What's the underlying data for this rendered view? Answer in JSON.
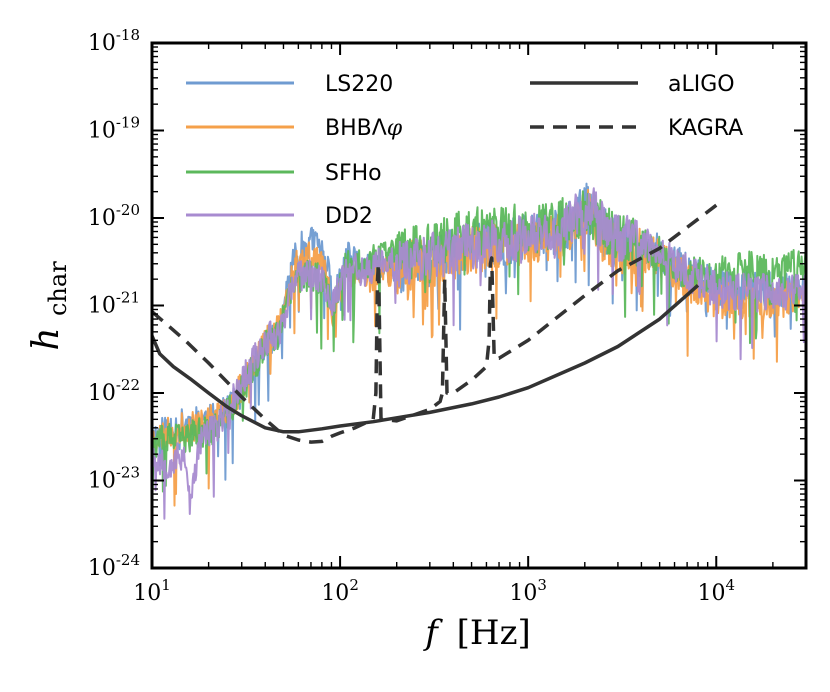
{
  "chart_data": {
    "type": "line",
    "x_scale": "log",
    "y_scale": "log",
    "xlim": [
      10,
      30000
    ],
    "ylim": [
      1e-24,
      1e-18
    ],
    "xlabel": "f",
    "xlabel_unit": "[Hz]",
    "ylabel": "h",
    "ylabel_sub": "char",
    "x_ticks": [
      {
        "value": 10,
        "base": "10",
        "exp": "1"
      },
      {
        "value": 100,
        "base": "10",
        "exp": "2"
      },
      {
        "value": 1000,
        "base": "10",
        "exp": "3"
      },
      {
        "value": 10000,
        "base": "10",
        "exp": "4"
      }
    ],
    "y_ticks": [
      {
        "value": 1e-24,
        "base": "10",
        "exp": "-24"
      },
      {
        "value": 1e-23,
        "base": "10",
        "exp": "-23"
      },
      {
        "value": 1e-22,
        "base": "10",
        "exp": "-22"
      },
      {
        "value": 1e-21,
        "base": "10",
        "exp": "-21"
      },
      {
        "value": 1e-20,
        "base": "10",
        "exp": "-20"
      },
      {
        "value": 1e-19,
        "base": "10",
        "exp": "-19"
      },
      {
        "value": 1e-18,
        "base": "10",
        "exp": "-18"
      }
    ],
    "series": [
      {
        "name": "LS220",
        "color": "#6f9bd1",
        "style": "noisy",
        "seed": 11,
        "x": [
          10,
          12,
          15,
          18,
          22,
          28,
          35,
          42,
          48,
          52,
          58,
          65,
          75,
          85,
          92,
          100,
          110,
          125,
          140,
          160,
          180,
          200,
          250,
          300,
          400,
          500,
          700,
          1000,
          1400,
          1800,
          2100,
          2500,
          3000,
          4000,
          5000,
          6000,
          8000,
          10000,
          15000,
          20000,
          30000
        ],
        "y": [
          3e-23,
          4e-23,
          4.5e-23,
          5e-23,
          5e-23,
          8e-23,
          2e-22,
          4e-22,
          5e-22,
          1.5e-21,
          4e-21,
          5e-21,
          5.5e-21,
          3e-21,
          1e-21,
          2e-21,
          3.5e-21,
          3e-21,
          2.5e-21,
          3e-21,
          2.5e-21,
          2.5e-21,
          3e-21,
          3e-21,
          4e-21,
          5e-21,
          5e-21,
          6e-21,
          7e-21,
          1e-20,
          1.4e-20,
          7e-21,
          5e-21,
          5e-21,
          4e-21,
          3e-21,
          2e-21,
          1.6e-21,
          1.5e-21,
          1.5e-21,
          1.6e-21
        ]
      },
      {
        "name": "BHBΛφ",
        "color": "#f5a04a",
        "style": "noisy",
        "seed": 23,
        "x": [
          10,
          12,
          15,
          18,
          22,
          28,
          35,
          42,
          48,
          52,
          58,
          65,
          75,
          85,
          92,
          100,
          110,
          125,
          140,
          160,
          180,
          200,
          250,
          300,
          400,
          500,
          700,
          1000,
          1400,
          1800,
          2100,
          2500,
          3000,
          4000,
          5000,
          6000,
          8000,
          10000,
          15000,
          20000,
          30000
        ],
        "y": [
          3e-23,
          3.5e-23,
          4e-23,
          4.5e-23,
          5e-23,
          9e-23,
          2.5e-22,
          4.5e-22,
          6e-22,
          1.2e-21,
          3e-21,
          3.5e-21,
          3.5e-21,
          2e-21,
          8e-22,
          1.5e-21,
          2.5e-21,
          2e-21,
          2e-21,
          2.5e-21,
          2.5e-21,
          2.5e-21,
          3e-21,
          3e-21,
          3.5e-21,
          4.5e-21,
          4.5e-21,
          5.5e-21,
          6e-21,
          9e-21,
          1.2e-20,
          6e-21,
          4.5e-21,
          4e-21,
          3.5e-21,
          2.5e-21,
          1.5e-21,
          1.2e-21,
          1.1e-21,
          1.1e-21,
          1.2e-21
        ]
      },
      {
        "name": "SFHo",
        "color": "#5cb85c",
        "style": "noisy",
        "seed": 37,
        "x": [
          10,
          12,
          15,
          18,
          22,
          28,
          35,
          42,
          48,
          52,
          58,
          65,
          75,
          85,
          92,
          100,
          110,
          125,
          140,
          160,
          180,
          200,
          250,
          300,
          400,
          500,
          700,
          1000,
          1400,
          1800,
          2100,
          2500,
          3000,
          4000,
          5000,
          6000,
          8000,
          10000,
          15000,
          20000,
          30000
        ],
        "y": [
          2.5e-23,
          3e-23,
          3e-23,
          3.5e-23,
          4e-23,
          8e-23,
          2e-22,
          4e-22,
          5e-22,
          1e-21,
          2e-21,
          2.2e-21,
          2.2e-21,
          1.5e-21,
          1e-21,
          2e-21,
          3e-21,
          3e-21,
          3e-21,
          3.5e-21,
          4e-21,
          4e-21,
          5e-21,
          5e-21,
          6e-21,
          7e-21,
          7e-21,
          8e-21,
          8e-21,
          1.1e-20,
          1.2e-20,
          8e-21,
          6e-21,
          5e-21,
          4e-21,
          3e-21,
          2.2e-21,
          2.2e-21,
          2.5e-21,
          2.5e-21,
          2.8e-21
        ]
      },
      {
        "name": "DD2",
        "color": "#a88bd0",
        "style": "noisy",
        "seed": 53,
        "x": [
          10,
          12,
          15,
          16,
          18,
          22,
          28,
          35,
          42,
          48,
          52,
          58,
          65,
          75,
          85,
          92,
          100,
          110,
          125,
          140,
          160,
          180,
          200,
          250,
          300,
          400,
          500,
          700,
          1000,
          1400,
          1800,
          2100,
          2500,
          3000,
          4000,
          5000,
          6000,
          8000,
          10000,
          15000,
          20000,
          30000
        ],
        "y": [
          2e-23,
          1.5e-23,
          2e-23,
          5e-24,
          3e-23,
          4e-23,
          1e-22,
          2.5e-22,
          4.5e-22,
          5e-22,
          1e-21,
          2e-21,
          2.3e-21,
          2.3e-21,
          1.5e-21,
          1e-21,
          2e-21,
          3e-21,
          2.5e-21,
          2.5e-21,
          3e-21,
          3e-21,
          3e-21,
          3.5e-21,
          3.5e-21,
          4.5e-21,
          5e-21,
          5e-21,
          6e-21,
          7e-21,
          1e-20,
          1.5e-20,
          8e-21,
          6e-21,
          5e-21,
          4e-21,
          3e-21,
          2e-21,
          1.5e-21,
          1.4e-21,
          1.4e-21,
          1.5e-21
        ]
      },
      {
        "name": "aLIGO",
        "color": "#333333",
        "style": "solid",
        "x": [
          10,
          11,
          13,
          16,
          20,
          25,
          30,
          40,
          50,
          60,
          80,
          100,
          150,
          200,
          300,
          500,
          700,
          1000,
          2000,
          3000,
          5000,
          8000
        ],
        "y": [
          4.5e-22,
          2.8e-22,
          2e-22,
          1.45e-22,
          1e-22,
          7e-23,
          5.5e-23,
          4e-23,
          3.6e-23,
          3.6e-23,
          3.9e-23,
          4.2e-23,
          4.7e-23,
          5.2e-23,
          6e-23,
          7.5e-23,
          9e-23,
          1.15e-22,
          2.2e-22,
          3.4e-22,
          7e-22,
          1.7e-21
        ]
      },
      {
        "name": "KAGRA",
        "color": "#333333",
        "style": "dashed",
        "x": [
          10,
          15,
          20,
          30,
          40,
          50,
          60,
          70,
          80,
          90,
          100,
          120,
          150,
          155,
          158,
          160,
          165,
          200,
          300,
          340,
          350,
          360,
          370,
          400,
          500,
          600,
          620,
          630,
          640,
          660,
          700,
          1000,
          2000,
          3000,
          5000,
          10000
        ],
        "y": [
          8.5e-22,
          4e-22,
          2.2e-22,
          9e-23,
          5e-23,
          3.3e-23,
          2.9e-23,
          2.75e-23,
          2.8e-23,
          3.2e-23,
          3.5e-23,
          4e-23,
          5e-23,
          1e-22,
          2e-21,
          3e-21,
          5e-23,
          4.8e-23,
          6.5e-23,
          8e-23,
          1e-22,
          2e-21,
          1e-22,
          1e-22,
          1.4e-22,
          2e-22,
          4e-22,
          3e-21,
          3.5e-21,
          2.5e-22,
          2.5e-22,
          4e-22,
          1.3e-21,
          2.5e-21,
          4.5e-21,
          1.4e-20
        ]
      }
    ]
  }
}
